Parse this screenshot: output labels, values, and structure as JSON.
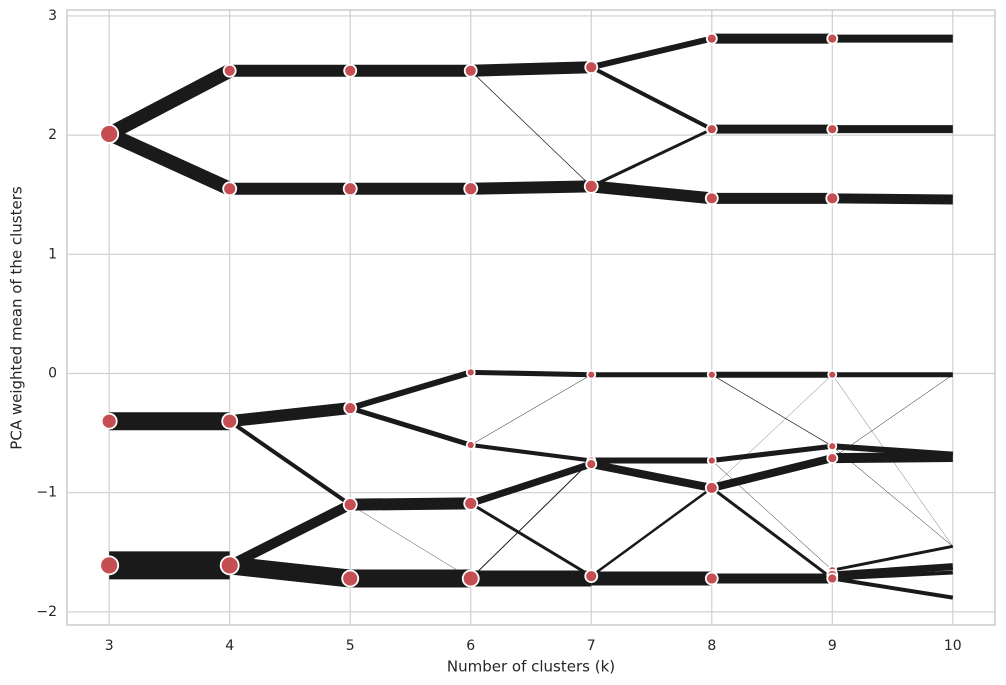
{
  "chart_data": {
    "type": "cluster-tree",
    "xlabel": "Number of clusters (k)",
    "ylabel": "PCA weighted mean of the clusters",
    "xlim": [
      2.65,
      10.35
    ],
    "ylim": [
      -2.11,
      3.05
    ],
    "xticks": [
      3,
      4,
      5,
      6,
      7,
      8,
      9,
      10
    ],
    "yticks": [
      {
        "value": -2,
        "label": "−2"
      },
      {
        "value": -1,
        "label": "−1"
      },
      0,
      1,
      2,
      3
    ],
    "grid": true,
    "node_color": "#c44e52",
    "edge_color": "#1a1a1a",
    "nodes": [
      {
        "x": 3,
        "y": 2.01,
        "size": 9
      },
      {
        "x": 3,
        "y": -0.4,
        "size": 7.5
      },
      {
        "x": 3,
        "y": -1.61,
        "size": 9
      },
      {
        "x": 4,
        "y": 2.54,
        "size": 6
      },
      {
        "x": 4,
        "y": 1.55,
        "size": 6.5
      },
      {
        "x": 4,
        "y": -0.4,
        "size": 7.5
      },
      {
        "x": 4,
        "y": -1.61,
        "size": 9
      },
      {
        "x": 5,
        "y": 2.54,
        "size": 6
      },
      {
        "x": 5,
        "y": 1.55,
        "size": 6.5
      },
      {
        "x": 5,
        "y": -0.29,
        "size": 6
      },
      {
        "x": 5,
        "y": -1.1,
        "size": 6.5
      },
      {
        "x": 5,
        "y": -1.72,
        "size": 8
      },
      {
        "x": 6,
        "y": 2.54,
        "size": 6
      },
      {
        "x": 6,
        "y": 1.55,
        "size": 6.5
      },
      {
        "x": 6,
        "y": 0.01,
        "size": 4
      },
      {
        "x": 6,
        "y": -0.6,
        "size": 4
      },
      {
        "x": 6,
        "y": -1.09,
        "size": 6.5
      },
      {
        "x": 6,
        "y": -1.72,
        "size": 8
      },
      {
        "x": 7,
        "y": 2.57,
        "size": 6
      },
      {
        "x": 7,
        "y": 1.57,
        "size": 6.5
      },
      {
        "x": 7,
        "y": -0.01,
        "size": 4
      },
      {
        "x": 7,
        "y": -0.73,
        "size": 4
      },
      {
        "x": 7,
        "y": -0.76,
        "size": 5
      },
      {
        "x": 7,
        "y": -1.7,
        "size": 6
      },
      {
        "x": 8,
        "y": 2.81,
        "size": 5
      },
      {
        "x": 8,
        "y": 2.05,
        "size": 5
      },
      {
        "x": 8,
        "y": 1.47,
        "size": 6
      },
      {
        "x": 8,
        "y": -0.01,
        "size": 4
      },
      {
        "x": 8,
        "y": -0.73,
        "size": 4
      },
      {
        "x": 8,
        "y": -0.96,
        "size": 6
      },
      {
        "x": 8,
        "y": -1.72,
        "size": 6
      },
      {
        "x": 9,
        "y": 2.81,
        "size": 5
      },
      {
        "x": 9,
        "y": 2.05,
        "size": 5
      },
      {
        "x": 9,
        "y": 1.47,
        "size": 6
      },
      {
        "x": 9,
        "y": -0.01,
        "size": 4
      },
      {
        "x": 9,
        "y": -0.61,
        "size": 4
      },
      {
        "x": 9,
        "y": -0.71,
        "size": 5
      },
      {
        "x": 9,
        "y": -1.65,
        "size": 4
      },
      {
        "x": 9,
        "y": -1.69,
        "size": 5
      },
      {
        "x": 9,
        "y": -1.72,
        "size": 5
      }
    ],
    "edges": [
      {
        "x": [
          3,
          4
        ],
        "y": [
          2.01,
          2.54
        ],
        "weight": 14
      },
      {
        "x": [
          3,
          4
        ],
        "y": [
          2.01,
          1.55
        ],
        "weight": 14
      },
      {
        "x": [
          3,
          4
        ],
        "y": [
          -0.4,
          -0.4
        ],
        "weight": 18
      },
      {
        "x": [
          3,
          4
        ],
        "y": [
          -1.61,
          -1.61
        ],
        "weight": 28
      },
      {
        "x": [
          4,
          5
        ],
        "y": [
          2.54,
          2.54
        ],
        "weight": 12
      },
      {
        "x": [
          4,
          5
        ],
        "y": [
          1.55,
          1.55
        ],
        "weight": 12
      },
      {
        "x": [
          4,
          5
        ],
        "y": [
          -0.4,
          -0.29
        ],
        "weight": 12
      },
      {
        "x": [
          4,
          5
        ],
        "y": [
          -0.4,
          -1.1
        ],
        "weight": 4
      },
      {
        "x": [
          4,
          5
        ],
        "y": [
          -1.61,
          -1.1
        ],
        "weight": 10
      },
      {
        "x": [
          4,
          5
        ],
        "y": [
          -1.61,
          -1.72
        ],
        "weight": 18
      },
      {
        "x": [
          5,
          6
        ],
        "y": [
          2.54,
          2.54
        ],
        "weight": 12
      },
      {
        "x": [
          5,
          6
        ],
        "y": [
          1.55,
          1.55
        ],
        "weight": 12
      },
      {
        "x": [
          5,
          6
        ],
        "y": [
          -0.29,
          0.01
        ],
        "weight": 6
      },
      {
        "x": [
          5,
          6
        ],
        "y": [
          -0.29,
          -0.6
        ],
        "weight": 5
      },
      {
        "x": [
          5,
          6
        ],
        "y": [
          -1.1,
          -1.09
        ],
        "weight": 12
      },
      {
        "x": [
          5,
          6
        ],
        "y": [
          -1.1,
          -1.72
        ],
        "weight": 0.4
      },
      {
        "x": [
          5,
          6
        ],
        "y": [
          -1.72,
          -1.72
        ],
        "weight": 18
      },
      {
        "x": [
          6,
          7
        ],
        "y": [
          2.54,
          2.57
        ],
        "weight": 12
      },
      {
        "x": [
          6,
          7
        ],
        "y": [
          2.54,
          1.57
        ],
        "weight": 0.7
      },
      {
        "x": [
          6,
          7
        ],
        "y": [
          1.55,
          1.57
        ],
        "weight": 12
      },
      {
        "x": [
          6,
          7
        ],
        "y": [
          0.01,
          -0.01
        ],
        "weight": 5
      },
      {
        "x": [
          6,
          7
        ],
        "y": [
          -0.6,
          -0.73
        ],
        "weight": 4
      },
      {
        "x": [
          6,
          7
        ],
        "y": [
          -0.6,
          -0.01
        ],
        "weight": 0.5
      },
      {
        "x": [
          6,
          7
        ],
        "y": [
          -1.09,
          -0.76
        ],
        "weight": 7
      },
      {
        "x": [
          6,
          7
        ],
        "y": [
          -1.09,
          -1.7
        ],
        "weight": 3
      },
      {
        "x": [
          6,
          7
        ],
        "y": [
          -1.72,
          -0.73
        ],
        "weight": 1
      },
      {
        "x": [
          6,
          7
        ],
        "y": [
          -1.72,
          -1.72
        ],
        "weight": 16
      },
      {
        "x": [
          7,
          8
        ],
        "y": [
          2.57,
          2.81
        ],
        "weight": 6
      },
      {
        "x": [
          7,
          8
        ],
        "y": [
          2.57,
          2.05
        ],
        "weight": 4
      },
      {
        "x": [
          7,
          8
        ],
        "y": [
          1.57,
          2.05
        ],
        "weight": 3
      },
      {
        "x": [
          7,
          8
        ],
        "y": [
          1.57,
          1.47
        ],
        "weight": 12
      },
      {
        "x": [
          7,
          8
        ],
        "y": [
          -0.01,
          -0.01
        ],
        "weight": 5
      },
      {
        "x": [
          7,
          8
        ],
        "y": [
          -0.73,
          -0.73
        ],
        "weight": 6
      },
      {
        "x": [
          7,
          8
        ],
        "y": [
          -0.76,
          -0.96
        ],
        "weight": 8
      },
      {
        "x": [
          7,
          8
        ],
        "y": [
          -1.7,
          -0.96
        ],
        "weight": 2.5
      },
      {
        "x": [
          7,
          8
        ],
        "y": [
          -1.72,
          -1.72
        ],
        "weight": 14
      },
      {
        "x": [
          8,
          9
        ],
        "y": [
          2.81,
          2.81
        ],
        "weight": 10
      },
      {
        "x": [
          8,
          9
        ],
        "y": [
          2.05,
          2.05
        ],
        "weight": 9
      },
      {
        "x": [
          8,
          9
        ],
        "y": [
          1.47,
          1.47
        ],
        "weight": 11
      },
      {
        "x": [
          8,
          9
        ],
        "y": [
          -0.01,
          -0.01
        ],
        "weight": 6
      },
      {
        "x": [
          8,
          9
        ],
        "y": [
          -0.01,
          -0.61
        ],
        "weight": 0.7
      },
      {
        "x": [
          8,
          9
        ],
        "y": [
          -0.73,
          -0.61
        ],
        "weight": 5
      },
      {
        "x": [
          8,
          9
        ],
        "y": [
          -0.73,
          -1.65
        ],
        "weight": 0.5
      },
      {
        "x": [
          8,
          9
        ],
        "y": [
          -0.96,
          -0.71
        ],
        "weight": 8
      },
      {
        "x": [
          8,
          9
        ],
        "y": [
          -0.96,
          -1.72
        ],
        "weight": 3
      },
      {
        "x": [
          8,
          9
        ],
        "y": [
          -0.96,
          -0.01
        ],
        "weight": 0.3
      },
      {
        "x": [
          8,
          9
        ],
        "y": [
          -1.72,
          -1.72
        ],
        "weight": 10
      },
      {
        "x": [
          9,
          10
        ],
        "y": [
          2.81,
          2.81
        ],
        "weight": 8
      },
      {
        "x": [
          9,
          10
        ],
        "y": [
          2.05,
          2.05
        ],
        "weight": 8
      },
      {
        "x": [
          9,
          10
        ],
        "y": [
          1.47,
          1.46
        ],
        "weight": 10
      },
      {
        "x": [
          9,
          10
        ],
        "y": [
          -0.01,
          -0.01
        ],
        "weight": 5
      },
      {
        "x": [
          9,
          10
        ],
        "y": [
          -0.61,
          -0.68
        ],
        "weight": 6
      },
      {
        "x": [
          9,
          10
        ],
        "y": [
          -0.71,
          -0.7
        ],
        "weight": 10
      },
      {
        "x": [
          9,
          10
        ],
        "y": [
          -0.61,
          -1.45
        ],
        "weight": 0.5
      },
      {
        "x": [
          9,
          10
        ],
        "y": [
          -0.01,
          -1.45
        ],
        "weight": 0.3
      },
      {
        "x": [
          9,
          10
        ],
        "y": [
          -0.71,
          -0.01
        ],
        "weight": 0.5
      },
      {
        "x": [
          9,
          10
        ],
        "y": [
          -1.65,
          -1.45
        ],
        "weight": 3
      },
      {
        "x": [
          9,
          10
        ],
        "y": [
          -1.69,
          -1.62
        ],
        "weight": 7
      },
      {
        "x": [
          9,
          10
        ],
        "y": [
          -1.72,
          -1.67
        ],
        "weight": 4
      },
      {
        "x": [
          9,
          10
        ],
        "y": [
          -1.72,
          -1.88
        ],
        "weight": 4
      }
    ]
  }
}
